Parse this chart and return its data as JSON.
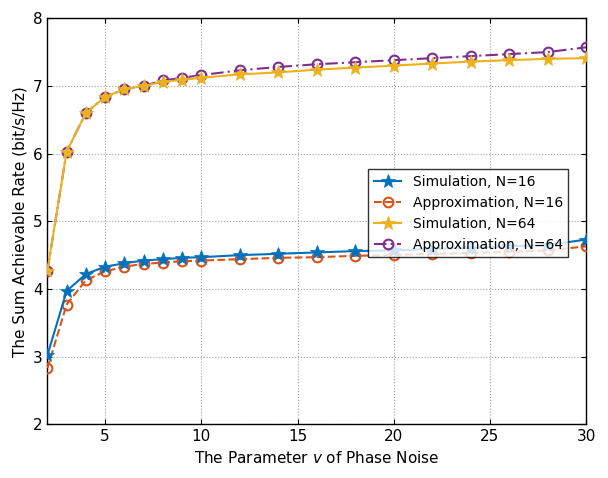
{
  "x_values": [
    2,
    3,
    4,
    5,
    6,
    7,
    8,
    9,
    10,
    12,
    14,
    16,
    18,
    20,
    22,
    24,
    26,
    28,
    30
  ],
  "sim_N16": [
    3.02,
    3.97,
    4.22,
    4.33,
    4.38,
    4.42,
    4.44,
    4.46,
    4.47,
    4.5,
    4.52,
    4.54,
    4.56,
    4.57,
    4.59,
    4.61,
    4.63,
    4.65,
    4.73
  ],
  "app_N16": [
    2.83,
    3.77,
    4.13,
    4.26,
    4.33,
    4.37,
    4.39,
    4.41,
    4.42,
    4.44,
    4.46,
    4.47,
    4.49,
    4.5,
    4.52,
    4.53,
    4.55,
    4.57,
    4.63
  ],
  "sim_N64": [
    4.27,
    6.03,
    6.6,
    6.84,
    6.95,
    7.0,
    7.06,
    7.09,
    7.12,
    7.17,
    7.2,
    7.24,
    7.27,
    7.3,
    7.33,
    7.36,
    7.38,
    7.4,
    7.41
  ],
  "app_N64": [
    4.27,
    6.03,
    6.6,
    6.84,
    6.95,
    7.0,
    7.08,
    7.12,
    7.16,
    7.23,
    7.28,
    7.32,
    7.35,
    7.38,
    7.41,
    7.44,
    7.47,
    7.5,
    7.57
  ],
  "color_sim_N16": "#0072BD",
  "color_app_N16": "#D95319",
  "color_sim_N64": "#EDB120",
  "color_app_N64": "#7E2F8E",
  "xlabel": "The Parameter $v$ of Phase Noise",
  "ylabel": "The Sum Achievable Rate (bit/s/Hz)",
  "xlim": [
    2,
    30
  ],
  "ylim": [
    2,
    8
  ],
  "xticks": [
    5,
    10,
    15,
    20,
    25,
    30
  ],
  "yticks": [
    2,
    3,
    4,
    5,
    6,
    7,
    8
  ],
  "legend_labels": [
    "Simulation, N=16",
    "Approximation, N=16",
    "Simulation, N=64",
    "Approximation, N=64"
  ],
  "figsize": [
    6.08,
    4.78
  ],
  "dpi": 100
}
